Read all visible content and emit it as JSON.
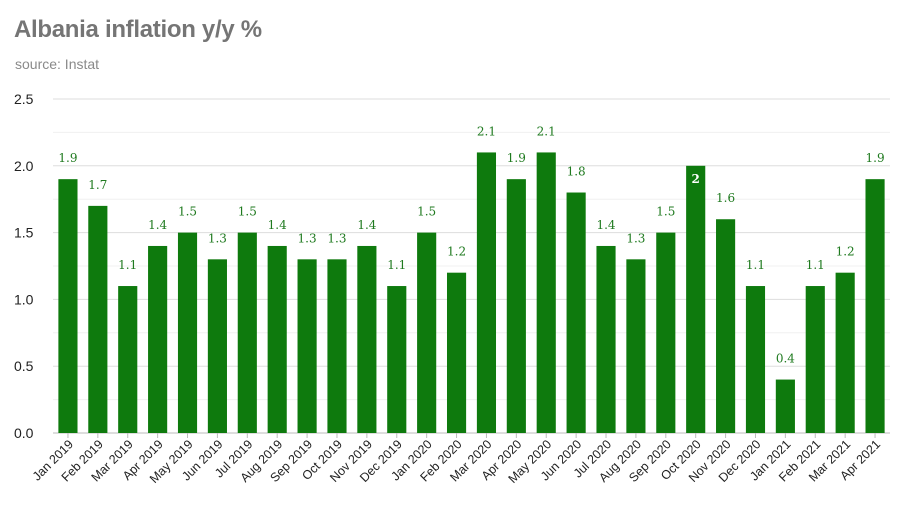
{
  "header": {
    "title": "Albania inflation y/y %",
    "subtitle": "source: Instat"
  },
  "colors": {
    "bar": "#0e7a0d",
    "grid": "#dddddd",
    "data_label": "#1f7a1f"
  },
  "chart_data": {
    "type": "bar",
    "title": "Albania inflation y/y %",
    "subtitle": "source: Instat",
    "xlabel": "",
    "ylabel": "",
    "ylim": [
      0,
      2.5
    ],
    "yticks": [
      "0.0",
      "0.5",
      "1.0",
      "1.5",
      "2.0",
      "2.5"
    ],
    "grid": true,
    "legend": "none",
    "categories": [
      "Jan 2019",
      "Feb 2019",
      "Mar 2019",
      "Apr 2019",
      "May 2019",
      "Jun 2019",
      "Jul 2019",
      "Aug 2019",
      "Sep 2019",
      "Oct 2019",
      "Nov 2019",
      "Dec 2019",
      "Jan 2020",
      "Feb 2020",
      "Mar 2020",
      "Apr 2020",
      "May 2020",
      "Jun 2020",
      "Jul 2020",
      "Aug 2020",
      "Sep 2020",
      "Oct 2020",
      "Nov 2020",
      "Dec 2020",
      "Jan 2021",
      "Feb 2021",
      "Mar 2021",
      "Apr 2021"
    ],
    "values": [
      1.9,
      1.7,
      1.1,
      1.4,
      1.5,
      1.3,
      1.5,
      1.4,
      1.3,
      1.3,
      1.4,
      1.1,
      1.5,
      1.2,
      2.1,
      1.9,
      2.1,
      1.8,
      1.4,
      1.3,
      1.5,
      2,
      1.6,
      1.1,
      0.4,
      1.1,
      1.2,
      1.9
    ],
    "data_labels": [
      "1.9",
      "1.7",
      "1.1",
      "1.4",
      "1.5",
      "1.3",
      "1.5",
      "1.4",
      "1.3",
      "1.3",
      "1.4",
      "1.1",
      "1.5",
      "1.2",
      "2.1",
      "1.9",
      "2.1",
      "1.8",
      "1.4",
      "1.3",
      "1.5",
      "2",
      "1.6",
      "1.1",
      "0.4",
      "1.1",
      "1.2",
      "1.9"
    ]
  }
}
